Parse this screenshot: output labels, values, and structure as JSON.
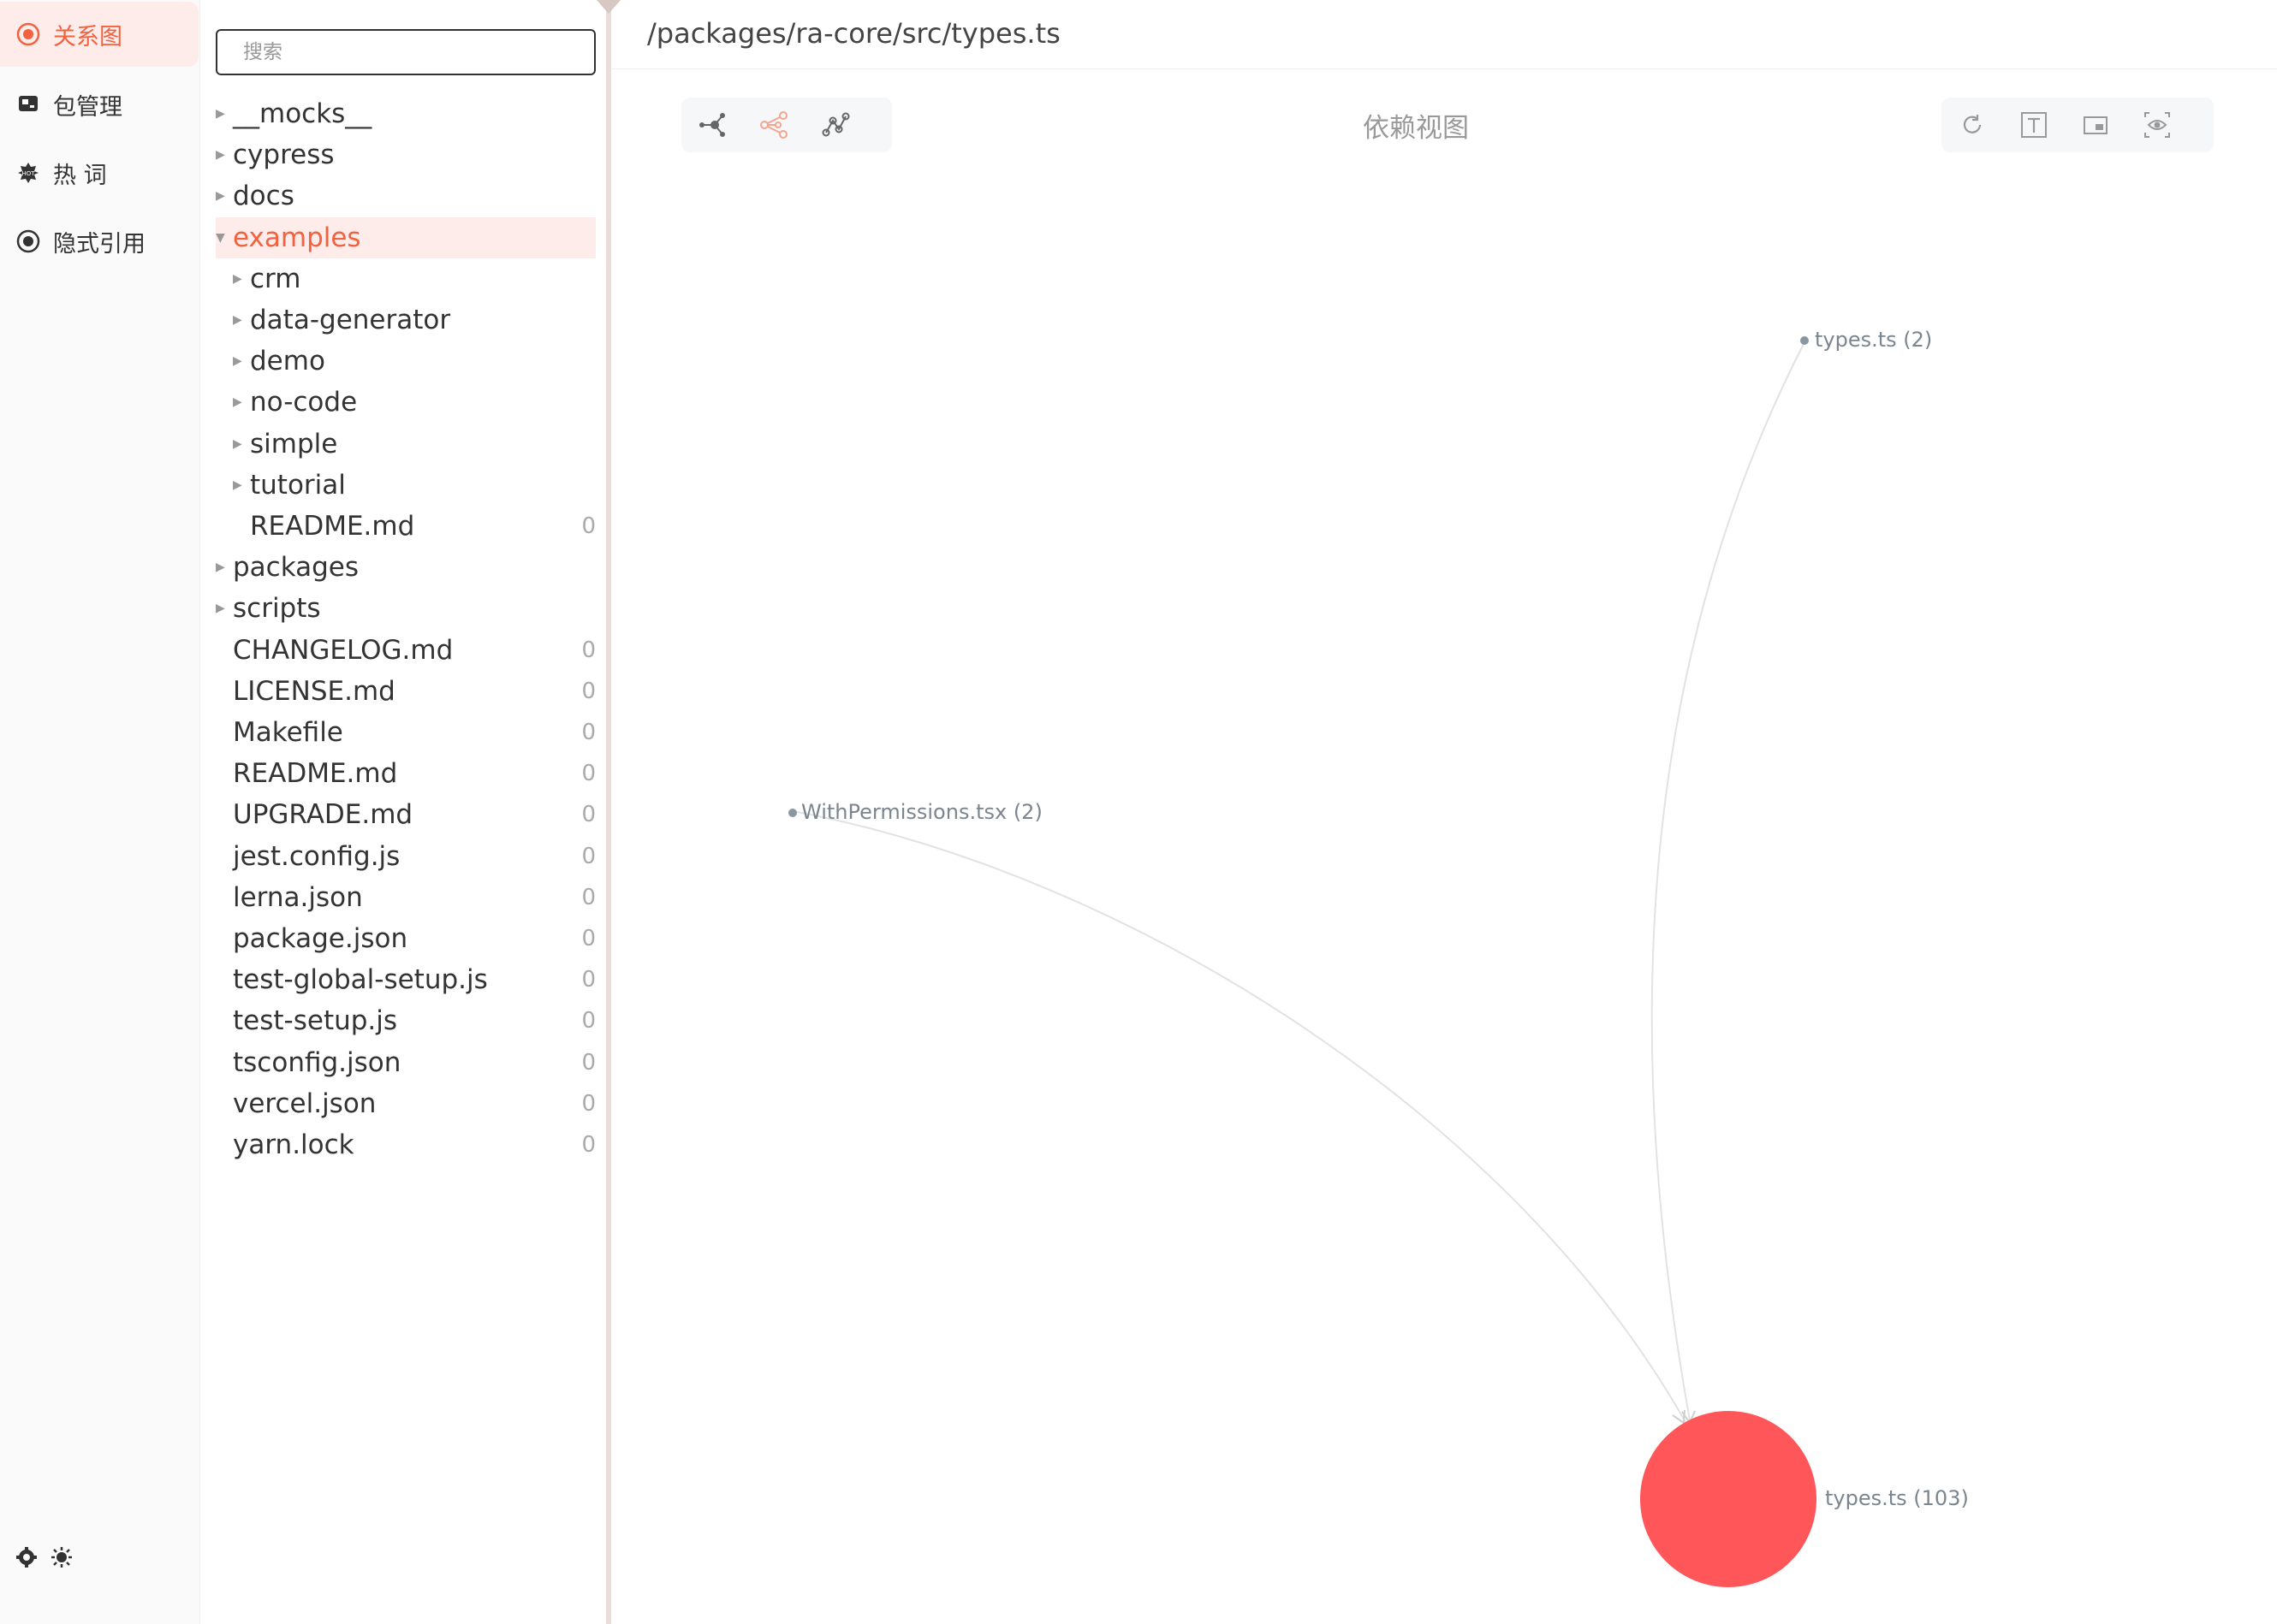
{
  "nav": {
    "items": [
      {
        "label": "关系图",
        "icon": "graph-icon"
      },
      {
        "label": "包管理",
        "icon": "package-icon"
      },
      {
        "label": "热 词",
        "icon": "hot-icon"
      },
      {
        "label": "隐式引用",
        "icon": "radio-icon"
      }
    ],
    "bottom_icons": [
      "settings-icon",
      "theme-icon"
    ]
  },
  "tree": {
    "search_placeholder": "搜索",
    "rows": [
      {
        "name": "__mocks__",
        "count": ""
      },
      {
        "name": "cypress",
        "count": ""
      },
      {
        "name": "docs",
        "count": ""
      },
      {
        "name": "examples",
        "count": ""
      },
      {
        "name": "crm",
        "count": ""
      },
      {
        "name": "data-generator",
        "count": ""
      },
      {
        "name": "demo",
        "count": ""
      },
      {
        "name": "no-code",
        "count": ""
      },
      {
        "name": "simple",
        "count": ""
      },
      {
        "name": "tutorial",
        "count": ""
      },
      {
        "name": "README.md",
        "count": "0"
      },
      {
        "name": "packages",
        "count": ""
      },
      {
        "name": "scripts",
        "count": ""
      },
      {
        "name": "CHANGELOG.md",
        "count": "0"
      },
      {
        "name": "LICENSE.md",
        "count": "0"
      },
      {
        "name": "Makefile",
        "count": "0"
      },
      {
        "name": "README.md",
        "count": "0"
      },
      {
        "name": "UPGRADE.md",
        "count": "0"
      },
      {
        "name": "jest.config.js",
        "count": "0"
      },
      {
        "name": "lerna.json",
        "count": "0"
      },
      {
        "name": "package.json",
        "count": "0"
      },
      {
        "name": "test-global-setup.js",
        "count": "0"
      },
      {
        "name": "test-setup.js",
        "count": "0"
      },
      {
        "name": "tsconfig.json",
        "count": "0"
      },
      {
        "name": "vercel.json",
        "count": "0"
      },
      {
        "name": "yarn.lock",
        "count": "0"
      }
    ]
  },
  "main": {
    "path": "/packages/ra-core/src/types.ts",
    "view_title": "依赖视图",
    "layout_buttons": [
      "force-layout-icon",
      "tree-layout-icon",
      "path-layout-icon"
    ],
    "action_buttons": [
      "refresh-icon",
      "text-icon",
      "image-icon",
      "eye-icon"
    ]
  },
  "graph": {
    "colors": {
      "accent": "#f2623f",
      "main_node": "#ff5659",
      "edge": "#e2e2e2",
      "small_node": "#8a96a0"
    },
    "nodes": [
      {
        "label": "types.ts (2)"
      },
      {
        "label": "WithPermissions.tsx (2)"
      },
      {
        "label": "types.ts (103)"
      }
    ]
  }
}
